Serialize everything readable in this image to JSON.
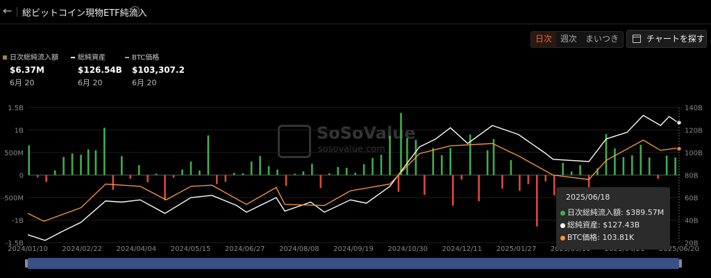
{
  "header": {
    "back_icon": "←",
    "title": "総ビットコイン現物ETF純流入",
    "info_icon": "i"
  },
  "range_tabs": [
    {
      "label": "日次",
      "active": true
    },
    {
      "label": "週次",
      "active": false
    },
    {
      "label": "まいつき",
      "active": false
    }
  ],
  "find_button": {
    "label": "チャートを探す",
    "icon": "calendar-icon"
  },
  "legend": [
    {
      "label": "日次総純流入額",
      "value": "$6.37M",
      "date": "6月 20",
      "color": "#e35a3e"
    },
    {
      "label": "総純資産",
      "value": "$126.54B",
      "date": "6月 20",
      "color": "#ffffff"
    },
    {
      "label": "BTC価格",
      "value": "$103,307.2",
      "date": "6月 20",
      "color": "#f0953a"
    }
  ],
  "colors": {
    "inflow": "#3fb04a",
    "outflow": "#e0493a",
    "assets": "#ffffff",
    "btc": "#f0953a",
    "navigator": "#3a4f86"
  },
  "watermark": {
    "name": "SoSoValue",
    "url": "sosovalue.com"
  },
  "tooltip": {
    "date": "2025/06/18",
    "rows": [
      {
        "label": "日次総純流入額:",
        "value": "$389.57M",
        "color": "#3fb04a"
      },
      {
        "label": "総純資産:",
        "value": "$127.43B",
        "color": "#ffffff"
      },
      {
        "label": "BTC価格:",
        "value": "103.81K",
        "color": "#f0953a"
      }
    ]
  },
  "chart_data": {
    "type": "bar",
    "x_range": [
      "2024/01/10",
      "2025/06/20"
    ],
    "x_ticks": [
      "2024/01/10",
      "2024/02/22",
      "2024/04/04",
      "2024/05/15",
      "2024/06/27",
      "2024/08/08",
      "2024/09/19",
      "2024/10/30",
      "2024/12/11",
      "2025/01/27",
      "2025/03/10",
      "2025/04/21",
      "2025/06/20"
    ],
    "y_left": {
      "label": "",
      "ticks": [
        "1.5B",
        "1B",
        "500M",
        "0",
        "-500M",
        "-1B",
        "-1.5B"
      ],
      "range": [
        -1.5,
        1.5
      ],
      "unit": "B USD"
    },
    "y_right": {
      "label": "",
      "ticks": [
        "140B",
        "120B",
        "100B",
        "80B",
        "60B",
        "40B",
        "20B"
      ],
      "range": [
        20,
        140
      ],
      "unit": "B USD"
    },
    "grid": true,
    "series": [
      {
        "name": "日次総純流入額",
        "type": "bar",
        "axis": "left",
        "points": [
          [
            "2024-01-11",
            0.66
          ],
          [
            "2024-01-18",
            -0.05
          ],
          [
            "2024-01-25",
            -0.15
          ],
          [
            "2024-02-01",
            0.1
          ],
          [
            "2024-02-08",
            0.4
          ],
          [
            "2024-02-15",
            0.48
          ],
          [
            "2024-02-22",
            0.45
          ],
          [
            "2024-02-28",
            0.57
          ],
          [
            "2024-03-05",
            0.55
          ],
          [
            "2024-03-12",
            1.05
          ],
          [
            "2024-03-19",
            -0.33
          ],
          [
            "2024-03-26",
            0.42
          ],
          [
            "2024-04-02",
            -0.08
          ],
          [
            "2024-04-09",
            0.22
          ],
          [
            "2024-04-16",
            -0.16
          ],
          [
            "2024-04-23",
            0.03
          ],
          [
            "2024-04-30",
            -0.56
          ],
          [
            "2024-05-07",
            -0.06
          ],
          [
            "2024-05-14",
            0.12
          ],
          [
            "2024-05-21",
            0.3
          ],
          [
            "2024-05-28",
            0.1
          ],
          [
            "2024-06-04",
            0.88
          ],
          [
            "2024-06-11",
            -0.2
          ],
          [
            "2024-06-18",
            -0.15
          ],
          [
            "2024-06-25",
            0.05
          ],
          [
            "2024-07-02",
            0.04
          ],
          [
            "2024-07-09",
            0.3
          ],
          [
            "2024-07-16",
            0.42
          ],
          [
            "2024-07-23",
            0.2
          ],
          [
            "2024-07-30",
            0.12
          ],
          [
            "2024-08-06",
            -0.24
          ],
          [
            "2024-08-13",
            0.03
          ],
          [
            "2024-08-20",
            0.08
          ],
          [
            "2024-08-27",
            0.25
          ],
          [
            "2024-09-03",
            -0.29
          ],
          [
            "2024-09-10",
            0.04
          ],
          [
            "2024-09-17",
            0.18
          ],
          [
            "2024-09-24",
            0.16
          ],
          [
            "2024-10-01",
            0.05
          ],
          [
            "2024-10-08",
            0.24
          ],
          [
            "2024-10-15",
            0.38
          ],
          [
            "2024-10-22",
            0.45
          ],
          [
            "2024-10-29",
            0.87
          ],
          [
            "2024-11-05",
            -0.37
          ],
          [
            "2024-11-07",
            1.38
          ],
          [
            "2024-11-12",
            0.82
          ],
          [
            "2024-11-19",
            0.78
          ],
          [
            "2024-11-26",
            -0.44
          ],
          [
            "2024-12-03",
            0.6
          ],
          [
            "2024-12-10",
            0.44
          ],
          [
            "2024-12-17",
            0.6
          ],
          [
            "2024-12-19",
            -0.68
          ],
          [
            "2024-12-26",
            -0.1
          ],
          [
            "2025-01-02",
            0.9
          ],
          [
            "2025-01-09",
            -0.58
          ],
          [
            "2025-01-16",
            0.55
          ],
          [
            "2025-01-21",
            0.8
          ],
          [
            "2025-01-28",
            -0.3
          ],
          [
            "2025-02-04",
            0.33
          ],
          [
            "2025-02-11",
            -0.35
          ],
          [
            "2025-02-18",
            -0.2
          ],
          [
            "2025-02-25",
            -1.14
          ],
          [
            "2025-03-04",
            -0.14
          ],
          [
            "2025-03-11",
            -0.45
          ],
          [
            "2025-03-18",
            0.27
          ],
          [
            "2025-03-25",
            0.08
          ],
          [
            "2025-04-01",
            0.22
          ],
          [
            "2025-04-08",
            -0.33
          ],
          [
            "2025-04-15",
            0.15
          ],
          [
            "2025-04-22",
            0.91
          ],
          [
            "2025-04-29",
            0.59
          ],
          [
            "2025-05-06",
            0.4
          ],
          [
            "2025-05-13",
            0.44
          ],
          [
            "2025-05-20",
            0.67
          ],
          [
            "2025-05-27",
            0.39
          ],
          [
            "2025-06-03",
            -0.08
          ],
          [
            "2025-06-10",
            0.43
          ],
          [
            "2025-06-17",
            0.39
          ],
          [
            "2025-06-20",
            0.01
          ]
        ]
      },
      {
        "name": "総純資産",
        "type": "line",
        "axis": "right",
        "points": [
          [
            "2024-01-10",
            27
          ],
          [
            "2024-01-24",
            22
          ],
          [
            "2024-02-07",
            30
          ],
          [
            "2024-02-22",
            38
          ],
          [
            "2024-03-13",
            57
          ],
          [
            "2024-03-26",
            56
          ],
          [
            "2024-04-10",
            58
          ],
          [
            "2024-04-30",
            46
          ],
          [
            "2024-05-21",
            60
          ],
          [
            "2024-06-07",
            62
          ],
          [
            "2024-06-27",
            53
          ],
          [
            "2024-07-05",
            47
          ],
          [
            "2024-07-29",
            60
          ],
          [
            "2024-08-05",
            48
          ],
          [
            "2024-08-26",
            56
          ],
          [
            "2024-09-06",
            47
          ],
          [
            "2024-09-27",
            58
          ],
          [
            "2024-10-10",
            55
          ],
          [
            "2024-10-29",
            70
          ],
          [
            "2024-11-13",
            92
          ],
          [
            "2024-11-22",
            105
          ],
          [
            "2024-12-05",
            112
          ],
          [
            "2024-12-17",
            122
          ],
          [
            "2024-12-31",
            108
          ],
          [
            "2025-01-20",
            124
          ],
          [
            "2025-02-10",
            116
          ],
          [
            "2025-03-03",
            100
          ],
          [
            "2025-03-10",
            94
          ],
          [
            "2025-04-08",
            92
          ],
          [
            "2025-04-22",
            112
          ],
          [
            "2025-05-09",
            118
          ],
          [
            "2025-05-22",
            133
          ],
          [
            "2025-06-05",
            124
          ],
          [
            "2025-06-12",
            132
          ],
          [
            "2025-06-18",
            127.43
          ],
          [
            "2025-06-20",
            126.54
          ]
        ]
      },
      {
        "name": "BTC価格",
        "type": "line",
        "axis": "right",
        "points": [
          [
            "2024-01-10",
            46
          ],
          [
            "2024-01-23",
            39
          ],
          [
            "2024-02-22",
            51
          ],
          [
            "2024-03-13",
            72
          ],
          [
            "2024-04-10",
            70
          ],
          [
            "2024-05-01",
            58
          ],
          [
            "2024-05-21",
            70
          ],
          [
            "2024-06-07",
            71
          ],
          [
            "2024-07-05",
            54
          ],
          [
            "2024-07-29",
            69
          ],
          [
            "2024-08-05",
            54
          ],
          [
            "2024-09-06",
            53
          ],
          [
            "2024-09-27",
            66
          ],
          [
            "2024-10-29",
            72
          ],
          [
            "2024-11-12",
            88
          ],
          [
            "2024-11-22",
            99
          ],
          [
            "2024-12-17",
            106
          ],
          [
            "2025-01-20",
            108
          ],
          [
            "2025-02-10",
            97
          ],
          [
            "2025-03-10",
            80
          ],
          [
            "2025-04-08",
            76
          ],
          [
            "2025-04-22",
            93
          ],
          [
            "2025-05-22",
            111
          ],
          [
            "2025-06-05",
            102
          ],
          [
            "2025-06-18",
            103.81
          ],
          [
            "2025-06-20",
            103.3
          ]
        ]
      }
    ]
  }
}
